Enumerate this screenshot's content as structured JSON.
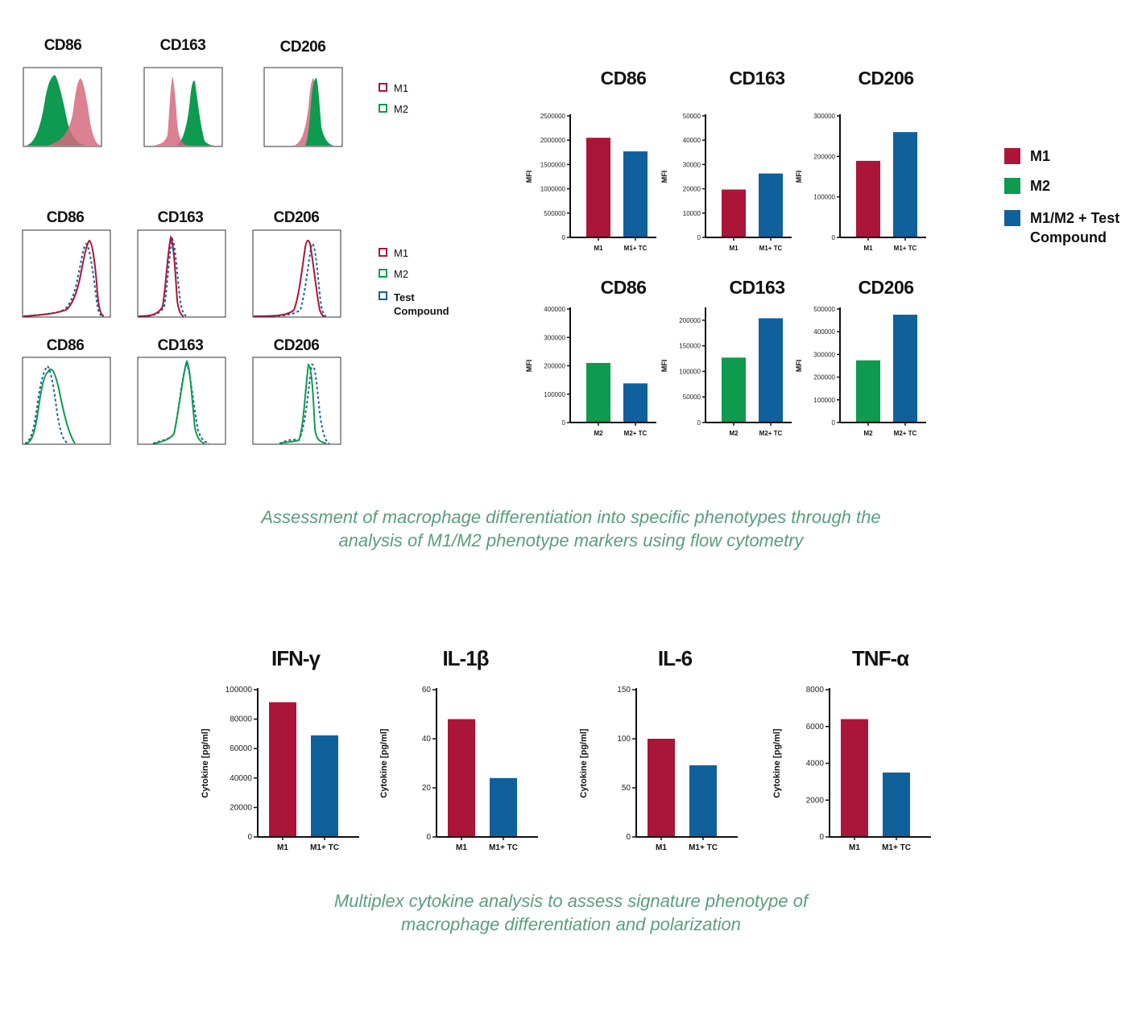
{
  "colors": {
    "m1": "#ab1538",
    "m2": "#0e9a4f",
    "tc": "#10609c",
    "m1_fill": "#d56b7f",
    "caption": "#5a9e7e"
  },
  "histograms_top": {
    "titles": [
      "CD86",
      "CD163",
      "CD206"
    ],
    "legend": [
      {
        "label": "M1",
        "color": "#ab1538"
      },
      {
        "label": "M2",
        "color": "#0e9a4f"
      }
    ]
  },
  "histograms_bottom": {
    "row1_titles": [
      "CD86",
      "CD163",
      "CD206"
    ],
    "row2_titles": [
      "CD86",
      "CD163",
      "CD206"
    ],
    "legend": [
      {
        "label": "M1",
        "color": "#ab1538"
      },
      {
        "label": "M2",
        "color": "#0e9a4f"
      },
      {
        "label": "Test Compound",
        "color": "#10609c",
        "dashed": true
      }
    ]
  },
  "bar_legend": [
    {
      "label": "M1",
      "color": "#ab1538"
    },
    {
      "label": "M2",
      "color": "#0e9a4f"
    },
    {
      "label": "M1/M2 + Test Compound",
      "color": "#10609c"
    }
  ],
  "captions": {
    "flow": [
      "Assessment of macrophage differentiation into specific phenotypes through the",
      "analysis of M1/M2 phenotype markers using flow cytometry"
    ],
    "cytokine": [
      "Multiplex cytokine analysis to assess signature phenotype of",
      "macrophage differentiation and polarization"
    ]
  },
  "chart_data": [
    {
      "id": "mfi-m1-cd86",
      "type": "bar",
      "title": "CD86",
      "ylabel": "MFI",
      "categories": [
        "M1",
        "M1+ TC"
      ],
      "values": [
        2050000,
        1770000
      ],
      "ylim": [
        0,
        2500000
      ],
      "yticks": [
        0,
        500000,
        1000000,
        1500000,
        2000000,
        2500000
      ],
      "colors": [
        "#ab1538",
        "#10609c"
      ]
    },
    {
      "id": "mfi-m1-cd163",
      "type": "bar",
      "title": "CD163",
      "ylabel": "MFI",
      "categories": [
        "M1",
        "M1+ TC"
      ],
      "values": [
        19700,
        26300
      ],
      "ylim": [
        0,
        50000
      ],
      "yticks": [
        0,
        10000,
        20000,
        30000,
        40000,
        50000
      ],
      "colors": [
        "#ab1538",
        "#10609c"
      ]
    },
    {
      "id": "mfi-m1-cd206",
      "type": "bar",
      "title": "CD206",
      "ylabel": "MFI",
      "categories": [
        "M1",
        "M1+ TC"
      ],
      "values": [
        189000,
        260000
      ],
      "ylim": [
        0,
        300000
      ],
      "yticks": [
        0,
        100000,
        200000,
        300000
      ],
      "colors": [
        "#ab1538",
        "#10609c"
      ]
    },
    {
      "id": "mfi-m2-cd86",
      "type": "bar",
      "title": "CD86",
      "ylabel": "MFI",
      "categories": [
        "M2",
        "M2+ TC"
      ],
      "values": [
        210000,
        138000
      ],
      "ylim": [
        0,
        400000
      ],
      "yticks": [
        0,
        100000,
        200000,
        300000,
        400000
      ],
      "colors": [
        "#0e9a4f",
        "#10609c"
      ]
    },
    {
      "id": "mfi-m2-cd163",
      "type": "bar",
      "title": "CD163",
      "ylabel": "MFI",
      "categories": [
        "M2",
        "M2+ TC"
      ],
      "values": [
        127000,
        204000
      ],
      "ylim": [
        0,
        222000
      ],
      "yticks": [
        0,
        50000,
        100000,
        150000,
        200000
      ],
      "colors": [
        "#0e9a4f",
        "#10609c"
      ]
    },
    {
      "id": "mfi-m2-cd206",
      "type": "bar",
      "title": "CD206",
      "ylabel": "MFI",
      "categories": [
        "M2",
        "M2+ TC"
      ],
      "values": [
        274000,
        475000
      ],
      "ylim": [
        0,
        500000
      ],
      "yticks": [
        0,
        100000,
        200000,
        300000,
        400000,
        500000
      ],
      "colors": [
        "#0e9a4f",
        "#10609c"
      ]
    },
    {
      "id": "cyto-ifng",
      "type": "bar",
      "title": "IFN-γ",
      "ylabel": "Cytokine [pg/ml]",
      "categories": [
        "M1",
        "M1+ TC"
      ],
      "values": [
        91500,
        69000
      ],
      "ylim": [
        0,
        100000
      ],
      "yticks": [
        0,
        20000,
        40000,
        60000,
        80000,
        100000
      ],
      "colors": [
        "#ab1538",
        "#10609c"
      ]
    },
    {
      "id": "cyto-il1b",
      "type": "bar",
      "title": "IL-1β",
      "ylabel": "Cytokine [pg/ml]",
      "categories": [
        "M1",
        "M1+ TC"
      ],
      "values": [
        48,
        24
      ],
      "ylim": [
        0,
        60
      ],
      "yticks": [
        0,
        20,
        40,
        60
      ],
      "colors": [
        "#ab1538",
        "#10609c"
      ]
    },
    {
      "id": "cyto-il6",
      "type": "bar",
      "title": "IL-6",
      "ylabel": "Cytokine [pg/ml]",
      "categories": [
        "M1",
        "M1+ TC"
      ],
      "values": [
        100,
        73
      ],
      "ylim": [
        0,
        150
      ],
      "yticks": [
        0,
        50,
        100,
        150
      ],
      "colors": [
        "#ab1538",
        "#10609c"
      ]
    },
    {
      "id": "cyto-tnfa",
      "type": "bar",
      "title": "TNF-α",
      "ylabel": "Cytokine [pg/ml]",
      "categories": [
        "M1",
        "M1+ TC"
      ],
      "values": [
        6400,
        3500
      ],
      "ylim": [
        0,
        8000
      ],
      "yticks": [
        0,
        2000,
        4000,
        6000,
        8000
      ],
      "colors": [
        "#ab1538",
        "#10609c"
      ]
    }
  ]
}
